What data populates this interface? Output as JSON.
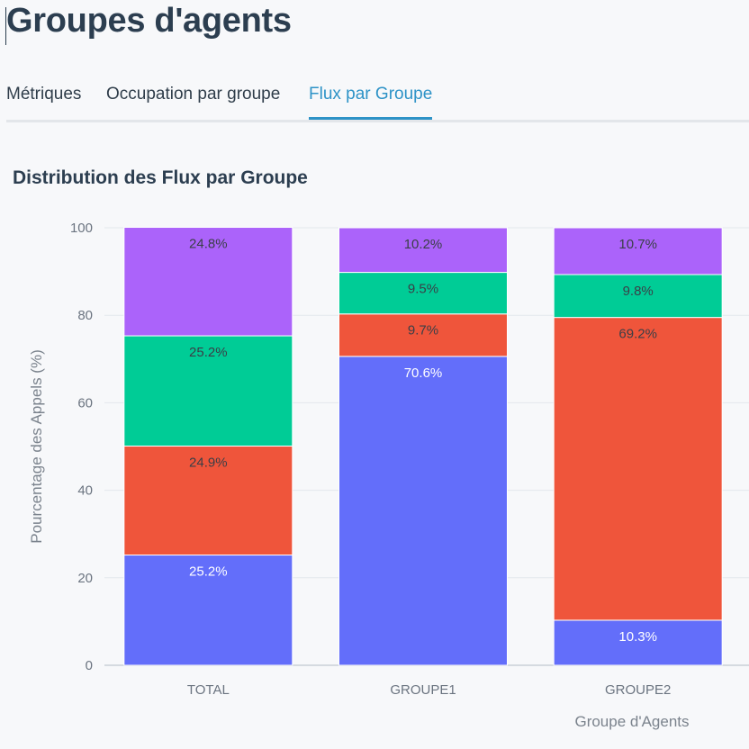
{
  "page": {
    "title": "Groupes d'agents"
  },
  "tabs": [
    {
      "label": "Métriques",
      "active": false
    },
    {
      "label": "Occupation par groupe",
      "active": false
    },
    {
      "label": "Flux par Groupe",
      "active": true
    }
  ],
  "section": {
    "title": "Distribution des Flux par Groupe"
  },
  "colors": {
    "accent": "#2e93c7",
    "series": [
      "#636efa",
      "#ef553b",
      "#00cc96",
      "#ab63fa"
    ]
  },
  "chart_data": {
    "type": "bar",
    "stacked": true,
    "categories": [
      "TOTAL",
      "GROUPE1",
      "GROUPE2"
    ],
    "series": [
      {
        "values": [
          25.2,
          70.6,
          10.3
        ],
        "labels": [
          "25.2%",
          "70.6%",
          "10.3%"
        ]
      },
      {
        "values": [
          24.9,
          9.7,
          69.2
        ],
        "labels": [
          "24.9%",
          "9.7%",
          "69.2%"
        ]
      },
      {
        "values": [
          25.2,
          9.5,
          9.8
        ],
        "labels": [
          "25.2%",
          "9.5%",
          "9.8%"
        ]
      },
      {
        "values": [
          24.8,
          10.2,
          10.7
        ],
        "labels": [
          "24.8%",
          "10.2%",
          "10.7%"
        ]
      }
    ],
    "title": "",
    "xlabel": "Groupe d'Agents",
    "ylabel": "Pourcentage des Appels (%)",
    "ylim": [
      0,
      100
    ],
    "yticks": [
      0,
      20,
      40,
      60,
      80,
      100
    ],
    "grid": true,
    "legend": false
  }
}
